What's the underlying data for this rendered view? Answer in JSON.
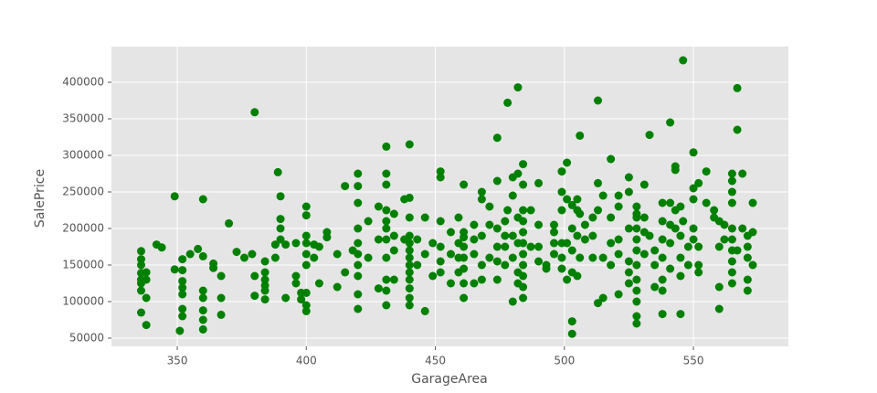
{
  "chart_data": {
    "type": "scatter",
    "xlabel": "GarageArea",
    "ylabel": "SalePrice",
    "color": "#008000",
    "grid": true,
    "xlim": [
      324.5,
      586.8
    ],
    "xticks": [
      350,
      400,
      450,
      500,
      550
    ],
    "ylim": [
      38750,
      448750
    ],
    "yticks": [
      50000,
      100000,
      150000,
      200000,
      250000,
      300000,
      350000,
      400000
    ],
    "x": [
      336,
      336,
      336,
      336,
      336,
      336,
      336,
      336,
      338,
      338,
      338,
      338,
      342,
      344,
      349,
      349,
      351,
      352,
      352,
      352,
      352,
      352,
      352,
      352,
      355,
      358,
      360,
      360,
      360,
      360,
      360,
      360,
      360,
      364,
      364,
      367,
      367,
      367,
      370,
      373,
      376,
      379,
      380,
      380,
      380,
      384,
      384,
      384,
      384,
      384,
      384,
      388,
      388,
      389,
      390,
      390,
      390,
      390,
      392,
      392,
      396,
      396,
      396,
      398,
      398,
      400,
      400,
      400,
      400,
      400,
      400,
      400,
      400,
      400,
      403,
      403,
      405,
      405,
      408,
      408,
      412,
      412,
      415,
      415,
      418,
      420,
      420,
      420,
      420,
      420,
      420,
      420,
      420,
      420,
      420,
      424,
      424,
      428,
      428,
      428,
      431,
      431,
      431,
      431,
      431,
      431,
      431,
      431,
      431,
      431,
      431,
      434,
      434,
      434,
      434,
      438,
      438,
      440,
      440,
      440,
      440,
      440,
      440,
      440,
      440,
      440,
      440,
      440,
      440,
      440,
      443,
      443,
      446,
      446,
      446,
      449,
      449,
      452,
      452,
      452,
      452,
      452,
      452,
      456,
      456,
      456,
      459,
      459,
      459,
      459,
      461,
      461,
      461,
      461,
      461,
      461,
      461,
      461,
      465,
      465,
      465,
      465,
      468,
      468,
      468,
      468,
      468,
      471,
      471,
      471,
      474,
      474,
      474,
      474,
      474,
      474,
      477,
      477,
      477,
      477,
      478,
      478,
      480,
      480,
      480,
      480,
      480,
      482,
      482,
      482,
      482,
      482,
      482,
      484,
      484,
      484,
      484,
      484,
      484,
      484,
      484,
      484,
      484,
      484,
      487,
      487,
      490,
      490,
      490,
      490,
      493,
      493,
      496,
      496,
      496,
      496,
      499,
      499,
      499,
      499,
      499,
      499,
      501,
      501,
      501,
      501,
      503,
      503,
      503,
      503,
      503,
      503,
      505,
      505,
      505,
      505,
      506,
      506,
      506,
      508,
      508,
      511,
      511,
      511,
      513,
      513,
      513,
      513,
      515,
      515,
      515,
      518,
      518,
      518,
      518,
      521,
      521,
      521,
      521,
      521,
      525,
      525,
      525,
      525,
      525,
      525,
      528,
      528,
      528,
      528,
      528,
      528,
      528,
      528,
      528,
      528,
      528,
      528,
      531,
      531,
      531,
      531,
      533,
      533,
      535,
      535,
      535,
      538,
      538,
      538,
      538,
      538,
      538,
      538,
      541,
      541,
      541,
      541,
      541,
      543,
      543,
      543,
      543,
      545,
      545,
      545,
      545,
      545,
      546,
      546,
      548,
      548,
      550,
      550,
      550,
      550,
      550,
      552,
      552,
      552,
      552,
      555,
      555,
      558,
      558,
      560,
      560,
      560,
      560,
      562,
      562,
      565,
      565,
      565,
      565,
      565,
      565,
      565,
      565,
      565,
      565,
      567,
      567,
      567,
      569,
      569,
      571,
      571,
      571,
      571,
      571,
      573,
      573,
      573
    ],
    "values": [
      169000,
      158000,
      150000,
      139000,
      130000,
      125000,
      115000,
      85000,
      140000,
      130000,
      105000,
      68000,
      178000,
      174000,
      244000,
      144000,
      60000,
      158000,
      143000,
      128000,
      119000,
      110000,
      90000,
      80000,
      165000,
      172000,
      240000,
      162000,
      115000,
      105000,
      88000,
      75000,
      62000,
      152000,
      146000,
      135000,
      105000,
      82000,
      207000,
      168000,
      160000,
      165000,
      359000,
      135000,
      108000,
      155000,
      140000,
      130000,
      122000,
      115000,
      103000,
      160000,
      178000,
      277000,
      244000,
      213000,
      200000,
      185000,
      105000,
      178000,
      180000,
      135000,
      125000,
      112000,
      103000,
      230000,
      218000,
      190000,
      180000,
      165000,
      150000,
      112000,
      95000,
      87000,
      178000,
      160000,
      175000,
      125000,
      195000,
      188000,
      165000,
      120000,
      258000,
      140000,
      170000,
      275000,
      258000,
      235000,
      200000,
      180000,
      165000,
      150000,
      135000,
      110000,
      90000,
      210000,
      160000,
      230000,
      185000,
      118000,
      312000,
      275000,
      260000,
      225000,
      210000,
      200000,
      185000,
      160000,
      130000,
      115000,
      95000,
      220000,
      190000,
      170000,
      130000,
      240000,
      185000,
      315000,
      242000,
      215000,
      190000,
      180000,
      170000,
      160000,
      150000,
      140000,
      130000,
      118000,
      105000,
      95000,
      185000,
      150000,
      215000,
      87000,
      165000,
      180000,
      135000,
      278000,
      270000,
      210000,
      175000,
      155000,
      140000,
      195000,
      165000,
      125000,
      215000,
      180000,
      160000,
      140000,
      260000,
      195000,
      188000,
      175000,
      160000,
      145000,
      125000,
      105000,
      205000,
      185000,
      165000,
      125000,
      240000,
      250000,
      190000,
      150000,
      130000,
      230000,
      205000,
      160000,
      324000,
      265000,
      200000,
      175000,
      155000,
      130000,
      210000,
      190000,
      175000,
      150000,
      372000,
      225000,
      270000,
      245000,
      190000,
      160000,
      100000,
      393000,
      275000,
      215000,
      180000,
      140000,
      125000,
      288000,
      260000,
      225000,
      210000,
      195000,
      180000,
      165000,
      150000,
      135000,
      120000,
      105000,
      175000,
      225000,
      262000,
      205000,
      175000,
      155000,
      150000,
      145000,
      205000,
      195000,
      180000,
      165000,
      278000,
      250000,
      225000,
      180000,
      160000,
      145000,
      290000,
      240000,
      180000,
      130000,
      232000,
      200000,
      170000,
      140000,
      73000,
      56000,
      240000,
      225000,
      190000,
      135000,
      327000,
      220000,
      160000,
      205000,
      185000,
      215000,
      190000,
      160000,
      375000,
      262000,
      98000,
      225000,
      245000,
      160000,
      105000,
      295000,
      215000,
      180000,
      150000,
      245000,
      230000,
      185000,
      165000,
      110000,
      270000,
      250000,
      200000,
      155000,
      140000,
      125000,
      230000,
      220000,
      215000,
      200000,
      185000,
      170000,
      150000,
      130000,
      115000,
      100000,
      80000,
      70000,
      260000,
      215000,
      195000,
      165000,
      328000,
      190000,
      170000,
      150000,
      120000,
      235000,
      210000,
      185000,
      160000,
      130000,
      115000,
      83000,
      345000,
      235000,
      205000,
      180000,
      145000,
      285000,
      280000,
      225000,
      200000,
      230000,
      190000,
      160000,
      135000,
      83000,
      430000,
      210000,
      175000,
      150000,
      304000,
      255000,
      240000,
      200000,
      185000,
      262000,
      175000,
      150000,
      140000,
      278000,
      235000,
      225000,
      215000,
      210000,
      175000,
      120000,
      90000,
      205000,
      185000,
      275000,
      265000,
      250000,
      235000,
      200000,
      185000,
      170000,
      155000,
      140000,
      125000,
      392000,
      335000,
      170000,
      275000,
      200000,
      190000,
      175000,
      160000,
      130000,
      115000,
      235000,
      150000,
      195000
    ]
  }
}
